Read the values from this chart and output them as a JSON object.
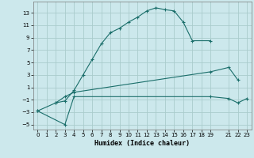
{
  "xlabel": "Humidex (Indice chaleur)",
  "background_color": "#cce8ec",
  "grid_color": "#aacccc",
  "line_color": "#1a6e6a",
  "xlim": [
    -0.5,
    23.5
  ],
  "ylim": [
    -5.8,
    14.8
  ],
  "xticks": [
    0,
    1,
    2,
    3,
    4,
    5,
    6,
    7,
    8,
    9,
    10,
    11,
    12,
    13,
    14,
    15,
    16,
    17,
    18,
    19,
    21,
    22,
    23
  ],
  "yticks": [
    -5,
    -3,
    -1,
    1,
    3,
    5,
    7,
    9,
    11,
    13
  ],
  "line1_x": [
    2,
    3,
    4,
    5,
    6,
    7,
    8,
    9,
    10,
    11,
    12,
    13,
    14,
    15,
    16,
    17,
    19
  ],
  "line1_y": [
    -1.5,
    -1.2,
    0.5,
    3.0,
    5.5,
    8.0,
    9.8,
    10.5,
    11.5,
    12.3,
    13.3,
    13.8,
    13.5,
    13.3,
    11.5,
    8.5,
    8.5
  ],
  "line2_x": [
    0,
    2,
    3,
    4,
    19,
    21,
    22
  ],
  "line2_y": [
    -2.8,
    -1.5,
    -0.5,
    0.2,
    3.5,
    4.2,
    2.2
  ],
  "line3_x": [
    0,
    3,
    4,
    19,
    21,
    22,
    23
  ],
  "line3_y": [
    -2.8,
    -5.0,
    -0.5,
    -0.5,
    -0.8,
    -1.5,
    -0.8
  ]
}
